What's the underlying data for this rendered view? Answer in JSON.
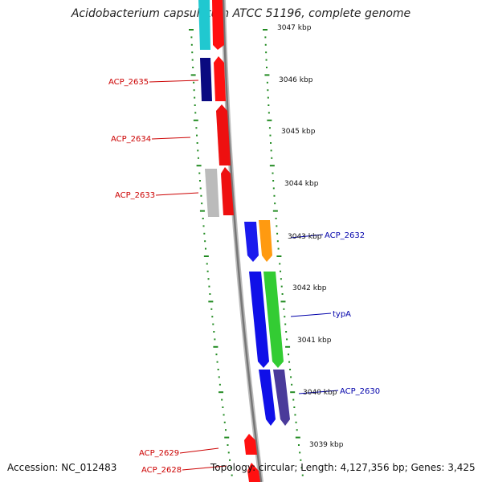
{
  "header": {
    "title": "Acidobacterium capsulatum ATCC 51196, complete genome"
  },
  "footer": {
    "accession": "Accession: NC_012483",
    "summary": "Topology: circular; Length: 4,127,356 bp; Genes: 3,425"
  },
  "colors": {
    "reverse_label": "#cc0000",
    "forward_label": "#0000aa",
    "tick": "#228B22",
    "backbone": "#888888"
  },
  "scale_labels": [
    "3047 kbp",
    "3046 kbp",
    "3045 kbp",
    "3044 kbp",
    "3043 kbp",
    "3042 kbp",
    "3041 kbp",
    "3040 kbp",
    "3039 kbp"
  ],
  "genes": {
    "reverse": [
      {
        "label": "ACP_2635"
      },
      {
        "label": "ACP_2634"
      },
      {
        "label": "ACP_2633"
      },
      {
        "label": "ACP_2629"
      },
      {
        "label": "ACP_2628"
      }
    ],
    "forward": [
      {
        "label": "ACP_2632"
      },
      {
        "label": "typA"
      },
      {
        "label": "ACP_2630"
      }
    ]
  }
}
